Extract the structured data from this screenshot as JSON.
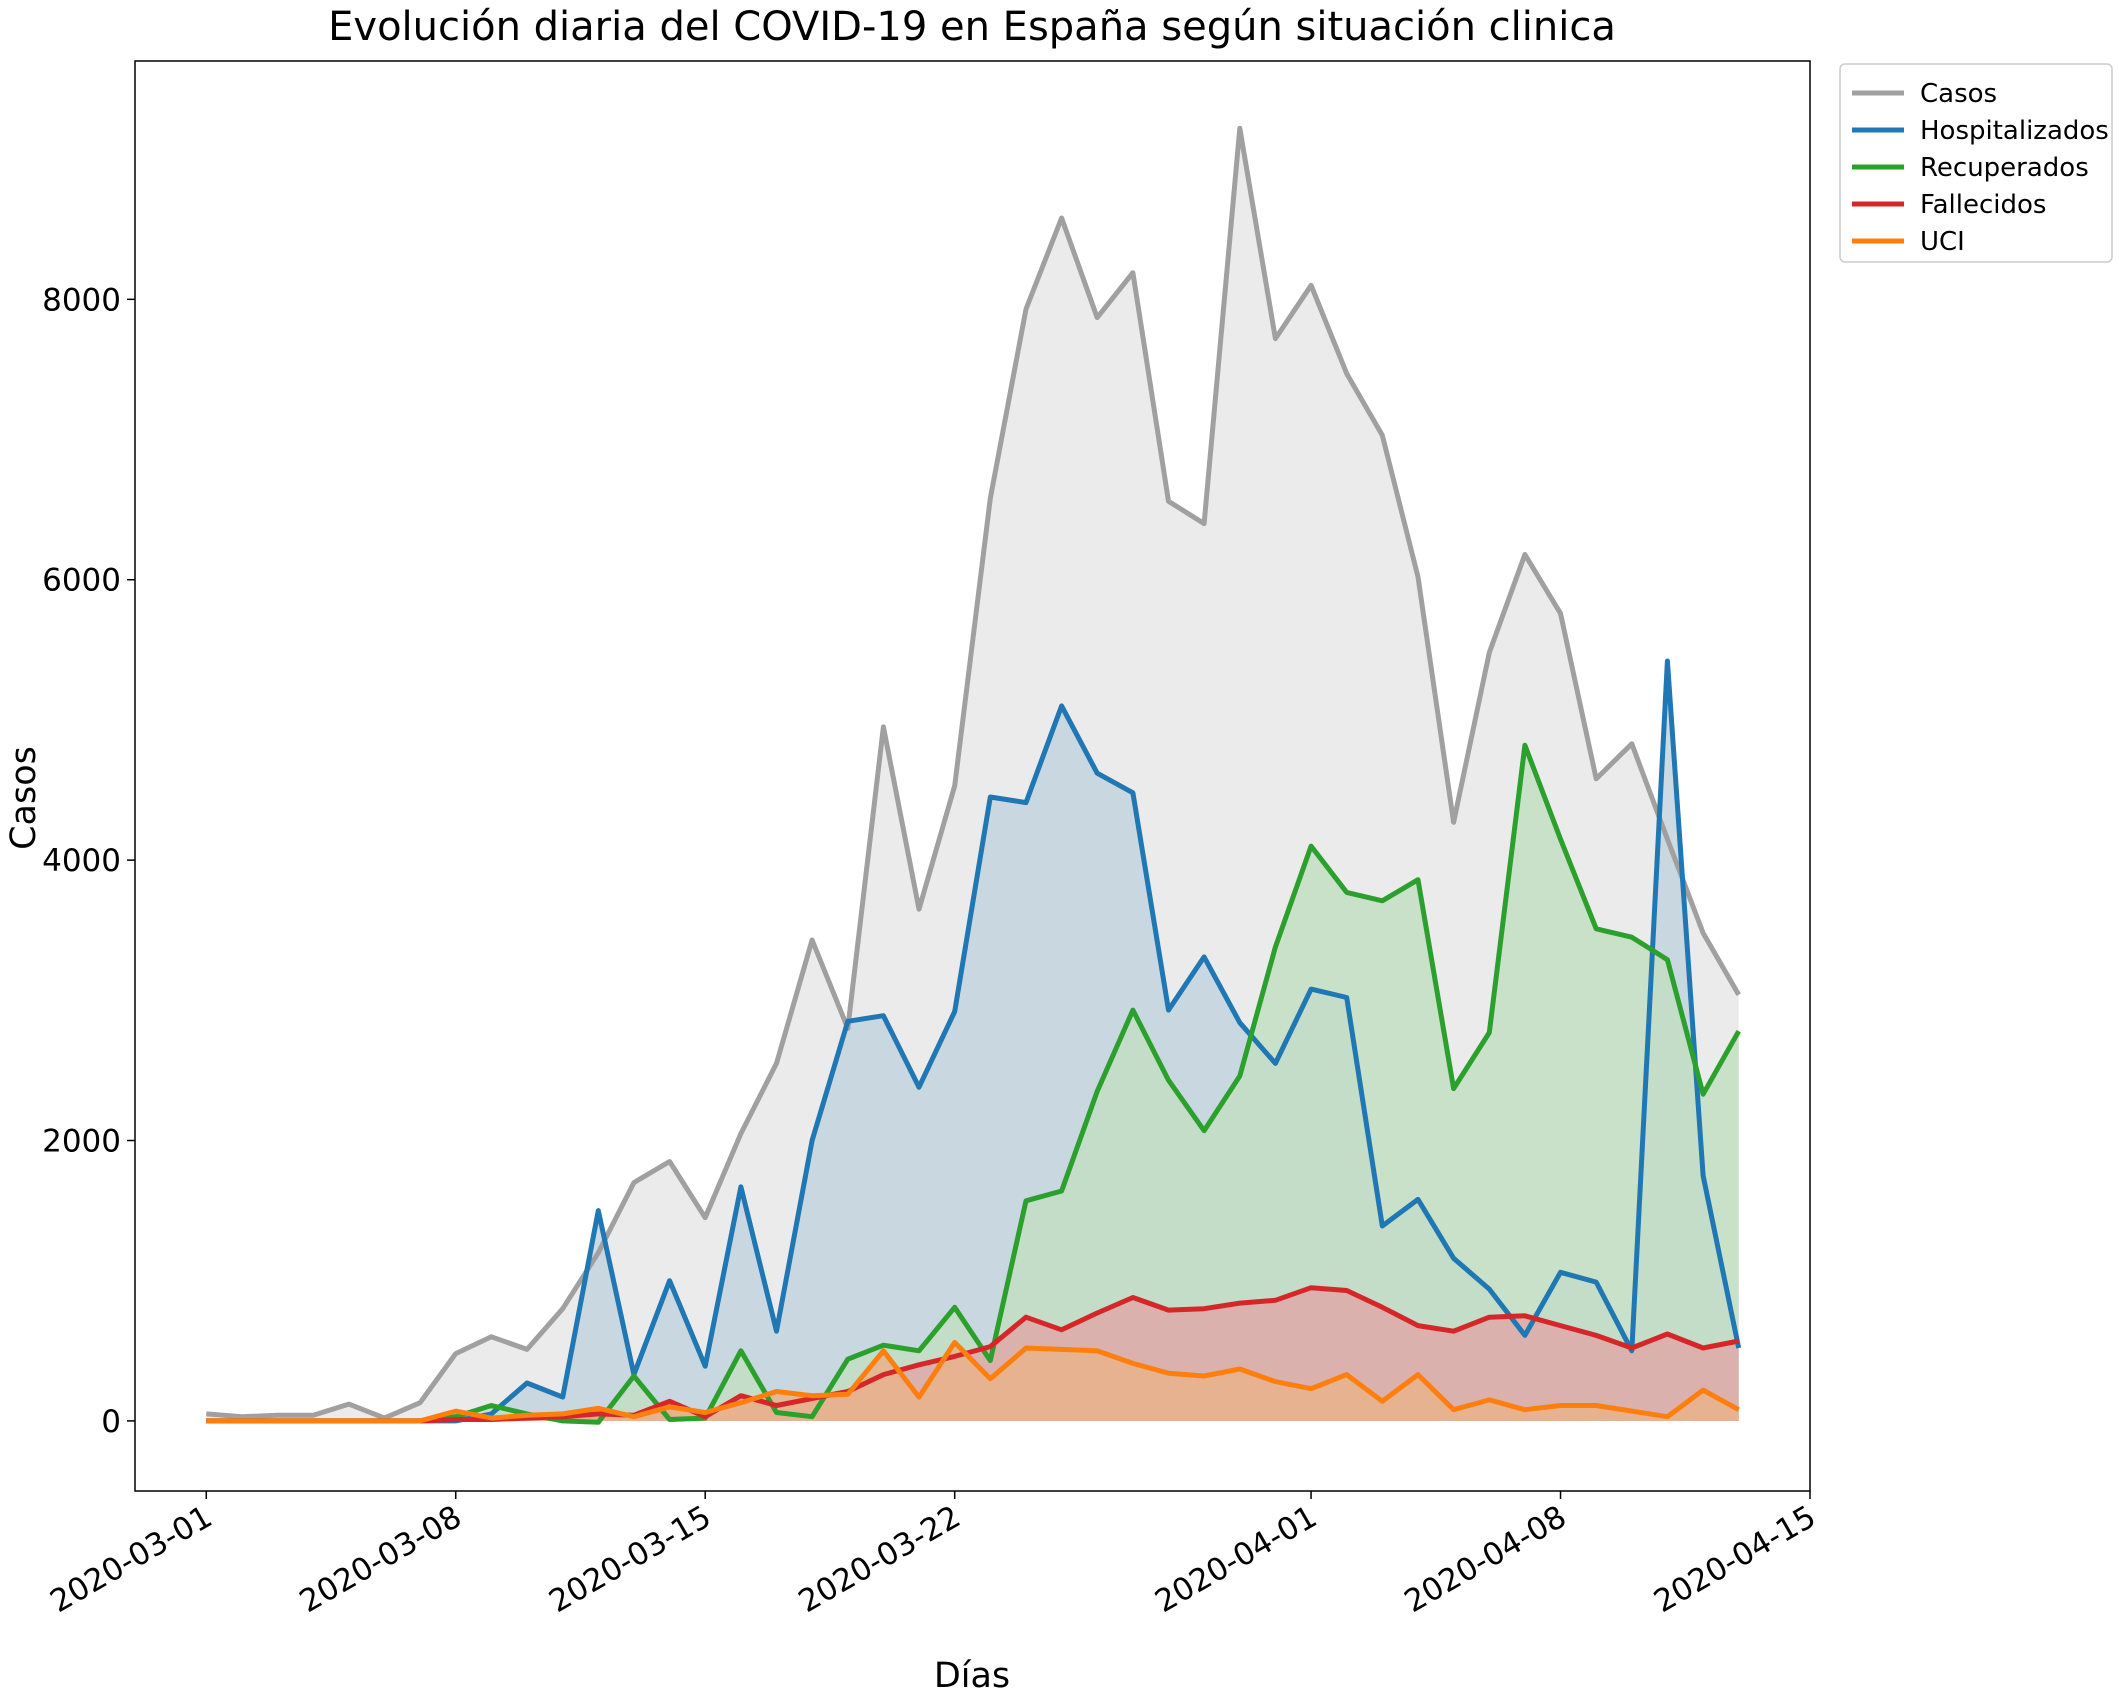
{
  "chart_data": {
    "type": "area",
    "title": "Evolución diaria del COVID-19 en España según situación clinica",
    "xlabel": "Días",
    "ylabel": "Casos",
    "x_start": "2020-03-01",
    "xlim": [
      "2020-02-28",
      "2020-04-15"
    ],
    "ylim": [
      -500,
      9700
    ],
    "x_ticks": [
      "2020-03-01",
      "2020-03-08",
      "2020-03-15",
      "2020-03-22",
      "2020-04-01",
      "2020-04-08",
      "2020-04-15"
    ],
    "y_ticks": [
      0,
      2000,
      4000,
      6000,
      8000
    ],
    "legend_position": "outside-top-right",
    "grid": false,
    "series": [
      {
        "name": "Casos",
        "color": "#a0a0a0",
        "fill": "#ebebeb",
        "values": [
          50,
          30,
          40,
          40,
          120,
          20,
          130,
          480,
          600,
          510,
          800,
          1200,
          1700,
          1850,
          1450,
          2050,
          2550,
          3430,
          2800,
          4950,
          3650,
          4530,
          6580,
          7930,
          8580,
          7870,
          8190,
          6560,
          6400,
          9220,
          7720,
          8100,
          7470,
          7030,
          6020,
          4270,
          5480,
          6180,
          5760,
          4580,
          4830,
          4150,
          3480,
          3040
        ]
      },
      {
        "name": "Hospitalizados",
        "color": "#1f77b4",
        "fill": "#c3d3df",
        "values": [
          0,
          0,
          0,
          0,
          0,
          0,
          0,
          0,
          50,
          270,
          170,
          1500,
          330,
          1000,
          390,
          1670,
          640,
          2000,
          2850,
          2890,
          2380,
          2920,
          4450,
          4410,
          5100,
          4620,
          4480,
          2930,
          3310,
          2840,
          2550,
          3080,
          3020,
          1390,
          1580,
          1160,
          940,
          610,
          1060,
          990,
          500,
          5420,
          1750,
          520
        ]
      },
      {
        "name": "Recuperados",
        "color": "#2ca02c",
        "fill": "#c3dec3",
        "values": [
          0,
          0,
          0,
          0,
          0,
          0,
          0,
          30,
          110,
          50,
          0,
          -10,
          320,
          10,
          20,
          500,
          60,
          30,
          440,
          540,
          500,
          810,
          430,
          1570,
          1640,
          2350,
          2930,
          2430,
          2070,
          2460,
          3380,
          4100,
          3770,
          3710,
          3860,
          2370,
          2770,
          4820,
          4150,
          3510,
          3450,
          3290,
          2330,
          2780
        ]
      },
      {
        "name": "Fallecidos",
        "color": "#d62728",
        "fill": "#dfa9a9",
        "values": [
          0,
          0,
          0,
          0,
          0,
          0,
          0,
          10,
          10,
          20,
          30,
          50,
          40,
          140,
          30,
          180,
          110,
          160,
          210,
          330,
          400,
          460,
          530,
          740,
          650,
          770,
          880,
          790,
          800,
          840,
          860,
          950,
          930,
          810,
          680,
          640,
          740,
          750,
          680,
          610,
          520,
          620,
          520,
          570
        ]
      },
      {
        "name": "UCI",
        "color": "#ff7f0e",
        "fill": "#e7b38a",
        "values": [
          0,
          0,
          0,
          0,
          0,
          0,
          0,
          70,
          20,
          40,
          50,
          90,
          30,
          100,
          60,
          130,
          210,
          180,
          190,
          500,
          170,
          560,
          300,
          520,
          510,
          500,
          410,
          340,
          320,
          370,
          280,
          230,
          330,
          140,
          330,
          80,
          150,
          80,
          110,
          110,
          70,
          30,
          220,
          80
        ]
      }
    ]
  }
}
